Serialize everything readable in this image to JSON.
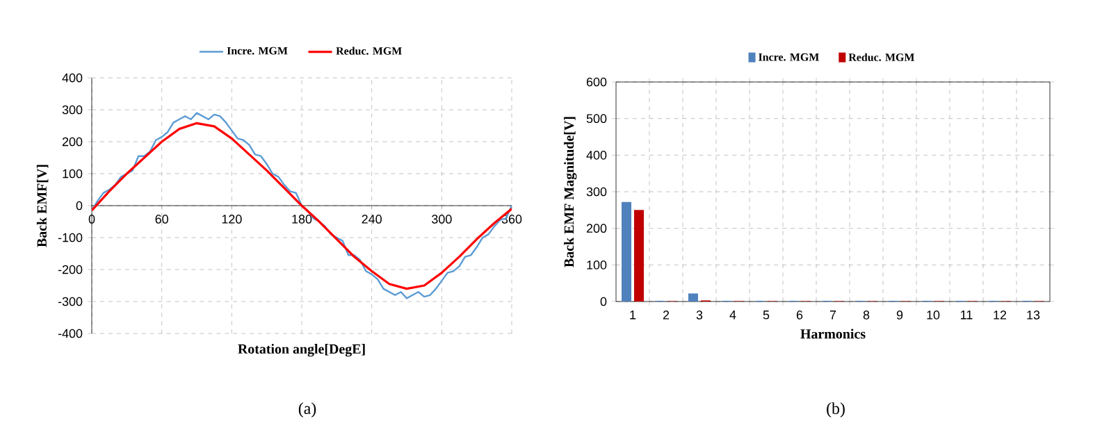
{
  "chart_data": [
    {
      "type": "line",
      "xlabel": "Rotation angle[DegE]",
      "ylabel": "Back EMF[V]",
      "xlim": [
        0,
        360
      ],
      "ylim": [
        -400,
        400
      ],
      "xticks": [
        0,
        60,
        120,
        180,
        240,
        300,
        360
      ],
      "yticks": [
        -400,
        -300,
        -200,
        -100,
        0,
        100,
        200,
        300,
        400
      ],
      "grid": true,
      "legend": "top",
      "annotations": [
        "(a)"
      ],
      "series": [
        {
          "name": "Incre. MGM",
          "color": "#5b9bd5",
          "x": [
            0,
            5,
            10,
            15,
            20,
            25,
            30,
            35,
            40,
            45,
            50,
            55,
            60,
            65,
            70,
            75,
            80,
            85,
            90,
            95,
            100,
            105,
            110,
            115,
            120,
            125,
            130,
            135,
            140,
            145,
            150,
            155,
            160,
            165,
            170,
            175,
            180,
            185,
            190,
            195,
            200,
            205,
            210,
            215,
            220,
            225,
            230,
            235,
            240,
            245,
            250,
            255,
            260,
            265,
            270,
            275,
            280,
            285,
            290,
            295,
            300,
            305,
            310,
            315,
            320,
            325,
            330,
            335,
            340,
            345,
            350,
            355,
            360
          ],
          "values": [
            -15,
            15,
            40,
            50,
            65,
            90,
            100,
            110,
            155,
            155,
            170,
            205,
            215,
            230,
            260,
            270,
            280,
            270,
            290,
            280,
            270,
            285,
            280,
            260,
            235,
            210,
            205,
            190,
            160,
            155,
            130,
            100,
            90,
            65,
            45,
            40,
            0,
            -15,
            -40,
            -50,
            -65,
            -90,
            -100,
            -110,
            -155,
            -155,
            -170,
            -205,
            -215,
            -230,
            -260,
            -270,
            -280,
            -270,
            -290,
            -280,
            -270,
            -285,
            -280,
            -260,
            -235,
            -210,
            -205,
            -190,
            -160,
            -155,
            -130,
            -100,
            -90,
            -65,
            -45,
            -40,
            0
          ]
        },
        {
          "name": "Reduc. MGM",
          "color": "#ff0000",
          "x": [
            0,
            15,
            30,
            45,
            60,
            75,
            90,
            105,
            120,
            135,
            150,
            165,
            180,
            195,
            210,
            225,
            240,
            255,
            270,
            285,
            300,
            315,
            330,
            345,
            360
          ],
          "values": [
            -15,
            45,
            100,
            150,
            200,
            240,
            258,
            248,
            210,
            160,
            110,
            55,
            0,
            -50,
            -105,
            -160,
            -205,
            -245,
            -260,
            -250,
            -210,
            -160,
            -105,
            -55,
            -10
          ]
        }
      ]
    },
    {
      "type": "bar",
      "xlabel": "Harmonics",
      "ylabel": "Back EMF Magnitude[V]",
      "categories": [
        "1",
        "2",
        "3",
        "4",
        "5",
        "6",
        "7",
        "8",
        "9",
        "10",
        "11",
        "12",
        "13"
      ],
      "ylim": [
        0,
        600
      ],
      "yticks": [
        0,
        100,
        200,
        300,
        400,
        500,
        600
      ],
      "grid": true,
      "legend": "top",
      "annotations": [
        "(b)"
      ],
      "series": [
        {
          "name": "Incre. MGM",
          "color": "#4f81bd",
          "values": [
            272,
            2,
            22,
            2,
            2,
            2,
            2,
            2,
            2,
            2,
            2,
            2,
            2
          ]
        },
        {
          "name": "Reduc. MGM",
          "color": "#c00000",
          "values": [
            250,
            1,
            3,
            1,
            1,
            1,
            1,
            1,
            1,
            1,
            1,
            1,
            1
          ]
        }
      ]
    }
  ]
}
